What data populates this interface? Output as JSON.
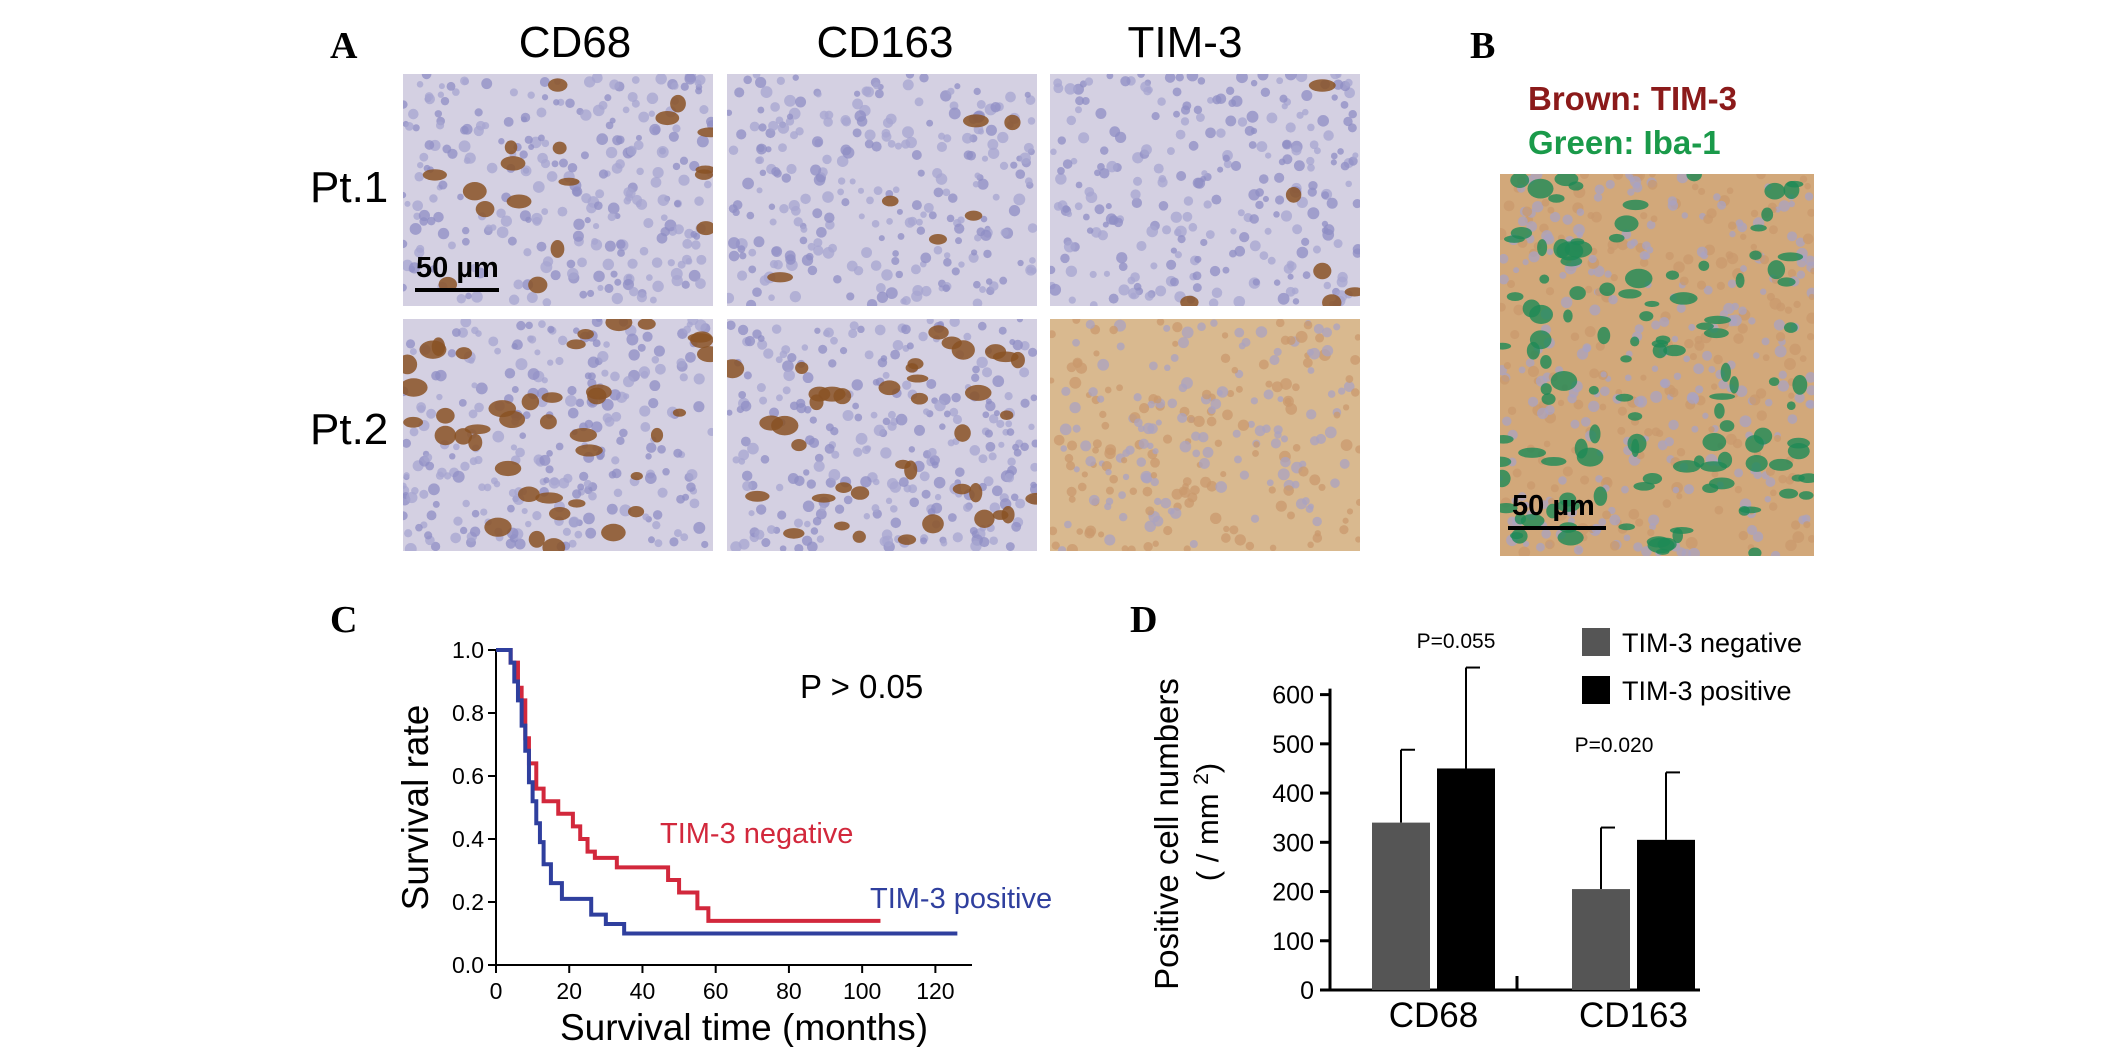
{
  "panel_a": {
    "letter": "A",
    "columns": [
      "CD68",
      "CD163",
      "TIM-3"
    ],
    "rows": [
      "Pt.1",
      "Pt.2"
    ],
    "scalebar": "50 µm"
  },
  "panel_b": {
    "letter": "B",
    "legend_brown": "Brown: TIM-3",
    "legend_green": "Green: Iba-1",
    "scalebar": "50 µm",
    "colors": {
      "brown": "#8b1a1a",
      "green": "#1a9a4a"
    }
  },
  "chart_data": [
    {
      "panel": "C",
      "type": "line",
      "annotation": "P > 0.05",
      "xlabel": "Survival time (months)",
      "ylabel": "Survival rate",
      "xlim": [
        0,
        130
      ],
      "ylim": [
        0,
        1.0
      ],
      "xticks": [
        0,
        20,
        40,
        60,
        80,
        100,
        120
      ],
      "yticks": [
        0.0,
        0.2,
        0.4,
        0.6,
        0.8,
        1.0
      ],
      "ytick_labels": [
        "0.0",
        "0.2",
        "0.4",
        "0.6",
        "0.8",
        "1.0"
      ],
      "series": [
        {
          "name": "TIM-3 negative",
          "color": "#d2283c",
          "steps": [
            [
              0,
              1.0
            ],
            [
              4,
              0.96
            ],
            [
              6,
              0.88
            ],
            [
              7,
              0.84
            ],
            [
              8,
              0.72
            ],
            [
              9,
              0.64
            ],
            [
              11,
              0.56
            ],
            [
              13,
              0.52
            ],
            [
              17,
              0.48
            ],
            [
              21,
              0.44
            ],
            [
              23,
              0.4
            ],
            [
              25,
              0.36
            ],
            [
              27,
              0.34
            ],
            [
              33,
              0.31
            ],
            [
              47,
              0.27
            ],
            [
              50,
              0.23
            ],
            [
              55,
              0.18
            ],
            [
              58,
              0.14
            ],
            [
              105,
              0.14
            ]
          ]
        },
        {
          "name": "TIM-3 positive",
          "color": "#2f3f9e",
          "steps": [
            [
              0,
              1.0
            ],
            [
              4,
              0.96
            ],
            [
              5,
              0.9
            ],
            [
              6,
              0.84
            ],
            [
              7,
              0.76
            ],
            [
              8,
              0.68
            ],
            [
              9,
              0.58
            ],
            [
              10,
              0.52
            ],
            [
              11,
              0.45
            ],
            [
              12,
              0.39
            ],
            [
              13,
              0.32
            ],
            [
              15,
              0.26
            ],
            [
              18,
              0.21
            ],
            [
              26,
              0.16
            ],
            [
              30,
              0.13
            ],
            [
              35,
              0.1
            ],
            [
              126,
              0.1
            ]
          ]
        }
      ]
    },
    {
      "panel": "D",
      "type": "bar",
      "categories": [
        "CD68",
        "CD163"
      ],
      "ylabel": "Positive cell numbers",
      "ylabel2": "( / mm",
      "ylabel2_sup": "2",
      "ylabel2_end": ")",
      "ylim": [
        0,
        650
      ],
      "yticks": [
        0,
        100,
        200,
        300,
        400,
        500,
        600
      ],
      "series": [
        {
          "name": "TIM-3 negative",
          "color": "#555555",
          "values": [
            340,
            205
          ],
          "errors": [
            148,
            125
          ]
        },
        {
          "name": "TIM-3 positive",
          "color": "#000000",
          "values": [
            450,
            305
          ],
          "errors": [
            205,
            137
          ]
        }
      ],
      "pvalues": [
        "P=0.055",
        "P=0.020"
      ],
      "legend_position": "top-right"
    }
  ]
}
